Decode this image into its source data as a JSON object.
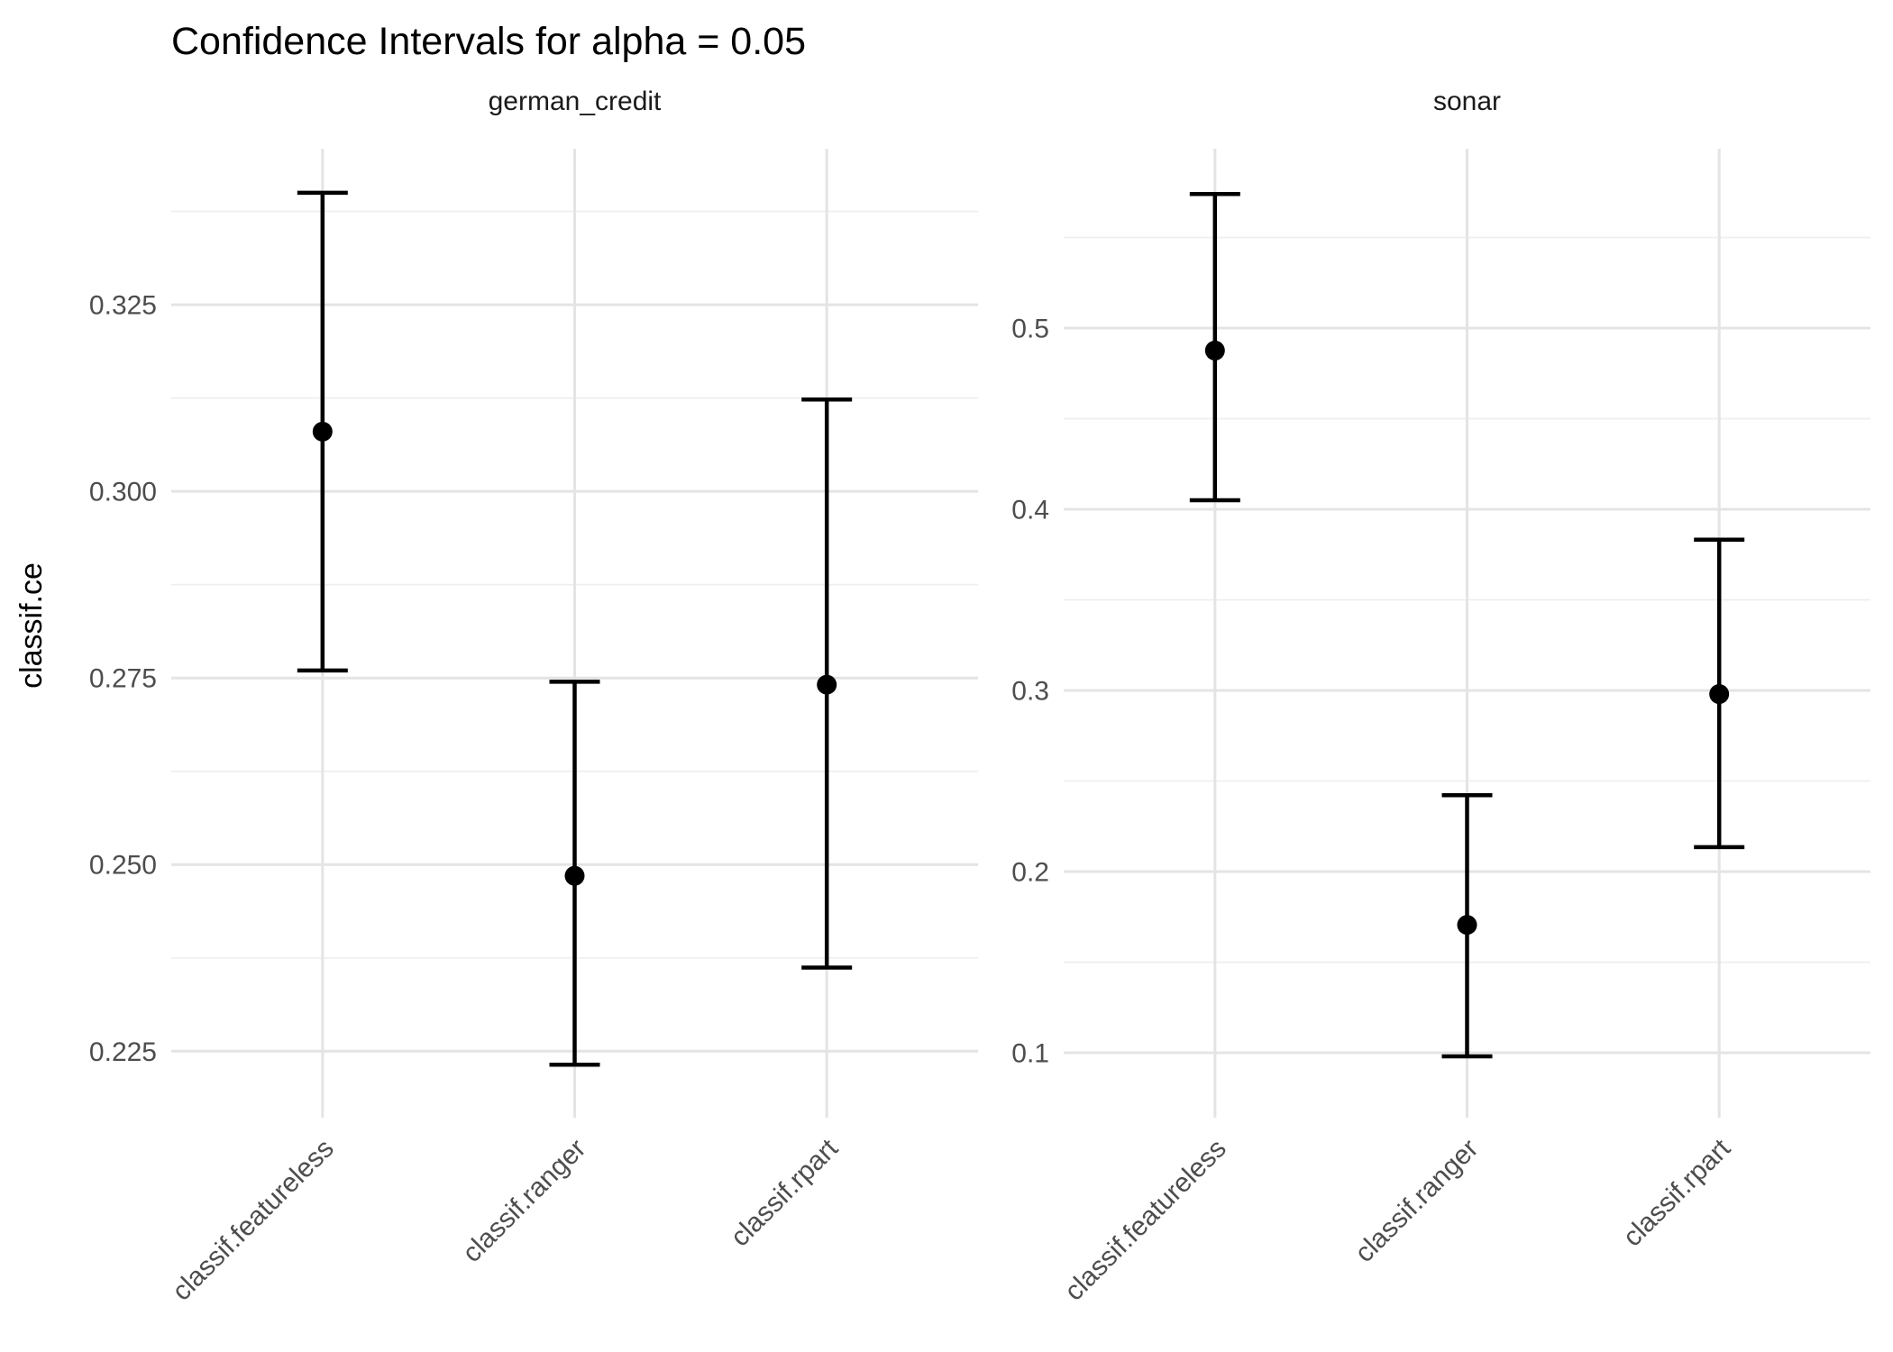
{
  "title": "Confidence Intervals for alpha = 0.05",
  "y_axis_title": "classif.ce",
  "chart_data": {
    "type": "errorbar",
    "title": "Confidence Intervals for alpha = 0.05",
    "xlabel": "",
    "ylabel": "classif.ce",
    "legend_position": "none",
    "grid": "major and minor horizontal, major vertical at categories",
    "background": "#FFFFFF",
    "categories": [
      "classif.featureless",
      "classif.ranger",
      "classif.rpart"
    ],
    "facets": [
      {
        "label": "german_credit",
        "ylim": [
          0.2161,
          0.3459
        ],
        "yticks": [
          {
            "value": 0.225,
            "label": "0.225"
          },
          {
            "value": 0.25,
            "label": "0.250"
          },
          {
            "value": 0.275,
            "label": "0.275"
          },
          {
            "value": 0.3,
            "label": "0.300"
          },
          {
            "value": 0.325,
            "label": "0.325"
          }
        ],
        "yticks_minor": [
          0.2375,
          0.2625,
          0.2875,
          0.3125,
          0.3375
        ],
        "points": [
          {
            "learner": "classif.featureless",
            "mean": 0.308,
            "lower": 0.276,
            "upper": 0.34
          },
          {
            "learner": "classif.ranger",
            "mean": 0.2485,
            "lower": 0.2232,
            "upper": 0.2745
          },
          {
            "learner": "classif.rpart",
            "mean": 0.2741,
            "lower": 0.2362,
            "upper": 0.3123
          }
        ]
      },
      {
        "label": "sonar",
        "ylim": [
          0.0642,
          0.599
        ],
        "yticks": [
          {
            "value": 0.1,
            "label": "0.1"
          },
          {
            "value": 0.2,
            "label": "0.2"
          },
          {
            "value": 0.3,
            "label": "0.3"
          },
          {
            "value": 0.4,
            "label": "0.4"
          },
          {
            "value": 0.5,
            "label": "0.5"
          }
        ],
        "yticks_minor": [
          0.15,
          0.25,
          0.35,
          0.45,
          0.55
        ],
        "points": [
          {
            "learner": "classif.featureless",
            "mean": 0.4876,
            "lower": 0.405,
            "upper": 0.574
          },
          {
            "learner": "classif.ranger",
            "mean": 0.1706,
            "lower": 0.098,
            "upper": 0.2422
          },
          {
            "learner": "classif.rpart",
            "mean": 0.298,
            "lower": 0.2135,
            "upper": 0.3832
          }
        ]
      }
    ],
    "style": {
      "point_color": "#000000",
      "errorbar_color": "#000000",
      "grid_major_color": "#E4E4E4",
      "grid_minor_color": "#EFEFEF",
      "tick_label_color": "#4D4D4D",
      "strip_label_color": "#1A1A1A",
      "title_color": "#000000",
      "axis_title_color": "#000000",
      "background": "#FFFFFF"
    }
  }
}
